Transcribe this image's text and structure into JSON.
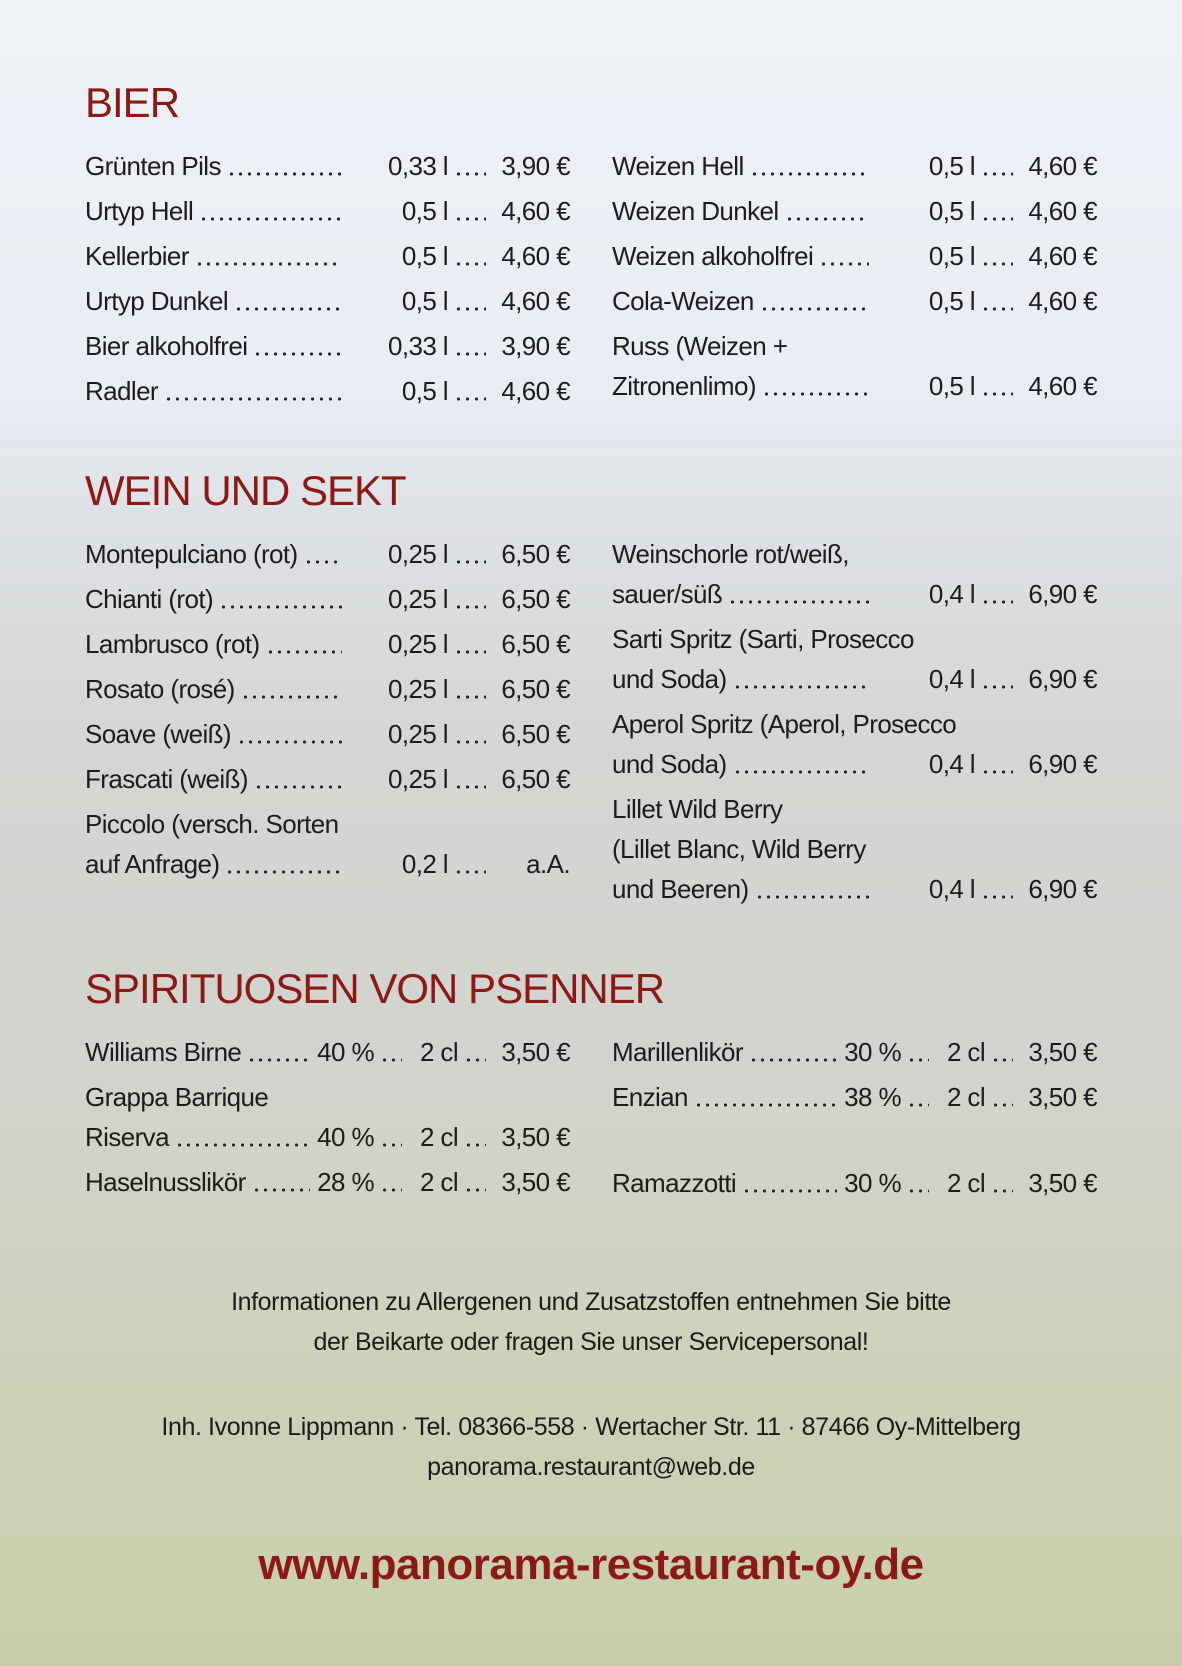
{
  "sections": [
    {
      "title": "BIER",
      "left": [
        {
          "name": [
            "Grünten Pils"
          ],
          "size": "0,33 l",
          "price": "3,90 €"
        },
        {
          "name": [
            "Urtyp Hell"
          ],
          "size": "0,5 l",
          "price": "4,60 €"
        },
        {
          "name": [
            "Kellerbier"
          ],
          "size": "0,5 l",
          "price": "4,60 €"
        },
        {
          "name": [
            "Urtyp Dunkel"
          ],
          "size": "0,5 l",
          "price": "4,60 €"
        },
        {
          "name": [
            "Bier alkoholfrei"
          ],
          "size": "0,33 l",
          "price": "3,90 €"
        },
        {
          "name": [
            "Radler"
          ],
          "size": "0,5 l",
          "price": "4,60 €"
        }
      ],
      "right": [
        {
          "name": [
            "Weizen Hell"
          ],
          "size": "0,5 l",
          "price": "4,60 €"
        },
        {
          "name": [
            "Weizen Dunkel"
          ],
          "size": "0,5 l",
          "price": "4,60 €"
        },
        {
          "name": [
            "Weizen alkoholfrei"
          ],
          "size": "0,5 l",
          "price": "4,60 €"
        },
        {
          "name": [
            "Cola-Weizen"
          ],
          "size": "0,5 l",
          "price": "4,60 €"
        },
        {
          "name": [
            "Russ (Weizen +",
            "Zitronenlimo)"
          ],
          "size": "0,5 l",
          "price": "4,60 €"
        }
      ]
    },
    {
      "title": "WEIN UND SEKT",
      "left": [
        {
          "name": [
            "Montepulciano (rot)"
          ],
          "size": "0,25 l",
          "price": "6,50 €"
        },
        {
          "name": [
            "Chianti (rot)"
          ],
          "size": "0,25 l",
          "price": "6,50 €"
        },
        {
          "name": [
            "Lambrusco (rot)"
          ],
          "size": "0,25 l",
          "price": "6,50 €"
        },
        {
          "name": [
            "Rosato (rosé)"
          ],
          "size": "0,25 l",
          "price": "6,50 €"
        },
        {
          "name": [
            "Soave (weiß)"
          ],
          "size": "0,25 l",
          "price": "6,50 €"
        },
        {
          "name": [
            "Frascati (weiß)"
          ],
          "size": "0,25 l",
          "price": "6,50 €"
        },
        {
          "name": [
            "Piccolo (versch. Sorten",
            "auf Anfrage)"
          ],
          "size": "0,2 l",
          "price": "a.A."
        }
      ],
      "right": [
        {
          "name": [
            "Weinschorle rot/weiß,",
            "sauer/süß"
          ],
          "size": "0,4 l",
          "price": "6,90 €"
        },
        {
          "name": [
            "Sarti Spritz (Sarti, Prosecco",
            "und Soda)"
          ],
          "size": "0,4 l",
          "price": "6,90 €"
        },
        {
          "name": [
            "Aperol Spritz (Aperol, Prosecco",
            "und Soda)"
          ],
          "size": "0,4 l",
          "price": "6,90 €"
        },
        {
          "name": [
            "Lillet Wild Berry",
            "(Lillet Blanc, Wild Berry",
            "und Beeren)"
          ],
          "size": "0,4 l",
          "price": "6,90 €"
        }
      ]
    },
    {
      "title": "SPIRITUOSEN VON PSENNER",
      "left": [
        {
          "name": [
            "Williams Birne"
          ],
          "strength": "40 %",
          "size": "2 cl",
          "price": "3,50 €"
        },
        {
          "name": [
            "Grappa Barrique",
            "Riserva"
          ],
          "strength": "40 %",
          "size": "2 cl",
          "price": "3,50 €"
        },
        {
          "name": [
            "Haselnusslikör"
          ],
          "strength": "28 %",
          "size": "2 cl",
          "price": "3,50 €"
        }
      ],
      "right": [
        {
          "name": [
            "Marillenlikör"
          ],
          "strength": "30 %",
          "size": "2 cl",
          "price": "3,50 €"
        },
        {
          "name": [
            "Enzian"
          ],
          "strength": "38 %",
          "size": "2 cl",
          "price": "3,50 €"
        },
        {
          "name": [
            "Ramazzotti"
          ],
          "strength": "30 %",
          "size": "2 cl",
          "price": "3,50 €"
        }
      ]
    }
  ],
  "footer": {
    "info": [
      "Informationen zu Allergenen und Zusatzstoffen entnehmen Sie bitte",
      "der Beikarte oder fragen Sie unser Servicepersonal!"
    ],
    "address": "Inh. Ivonne Lippmann · Tel. 08366-558 · Wertacher Str. 11 · 87466 Oy-Mittelberg",
    "email": "panorama.restaurant@web.de",
    "website": "www.panorama-restaurant-oy.de"
  }
}
